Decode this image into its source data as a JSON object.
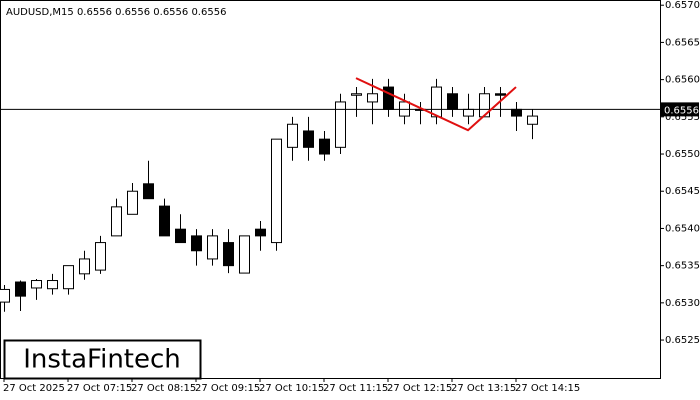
{
  "chart_data": {
    "type": "candlestick",
    "title": "AUDUSD,M15  0.6556 0.6556 0.6556 0.6556",
    "watermark": "InstaFintech",
    "categories": [
      "27 Oct 2025",
      null,
      null,
      null,
      "27 Oct 07:15",
      null,
      null,
      null,
      "27 Oct 08:15",
      null,
      null,
      null,
      "27 Oct 09:15",
      null,
      null,
      null,
      "27 Oct 10:15",
      null,
      null,
      null,
      "27 Oct 11:15",
      null,
      null,
      null,
      "27 Oct 12:15",
      null,
      null,
      null,
      "27 Oct 13:15",
      null,
      null,
      null,
      "27 Oct 14:15",
      null
    ],
    "open": [
      0.65301,
      0.65328,
      0.6532,
      0.65319,
      0.65319,
      0.65339,
      0.65344,
      0.6539,
      0.65419,
      0.6546,
      0.6543,
      0.65399,
      0.6539,
      0.65359,
      0.65381,
      0.6534,
      0.65399,
      0.65381,
      0.65509,
      0.65531,
      0.6552,
      0.65509,
      0.65579,
      0.6557,
      0.6559,
      0.65551,
      0.6556,
      0.6555,
      0.65581,
      0.65551,
      0.6555,
      0.65581,
      0.6556,
      0.6554
    ],
    "high": [
      0.65324,
      0.6533,
      0.65332,
      0.65339,
      0.6535,
      0.6537,
      0.6539,
      0.6544,
      0.65461,
      0.65491,
      0.6544,
      0.65419,
      0.65399,
      0.65399,
      0.65399,
      0.6539,
      0.6541,
      0.6552,
      0.6555,
      0.6555,
      0.65531,
      0.65581,
      0.6559,
      0.65601,
      0.65601,
      0.65581,
      0.6557,
      0.65601,
      0.6559,
      0.65581,
      0.6559,
      0.6559,
      0.6557,
      0.6556
    ],
    "low": [
      0.65288,
      0.65289,
      0.65304,
      0.65311,
      0.65311,
      0.65331,
      0.65339,
      0.6539,
      0.65419,
      0.6544,
      0.6539,
      0.65381,
      0.6535,
      0.6535,
      0.6534,
      0.6534,
      0.6537,
      0.6537,
      0.65491,
      0.65491,
      0.65491,
      0.655,
      0.6555,
      0.6554,
      0.6555,
      0.6554,
      0.6554,
      0.6554,
      0.6555,
      0.6554,
      0.6555,
      0.6555,
      0.65531,
      0.6552
    ],
    "close": [
      0.65318,
      0.65309,
      0.6533,
      0.6533,
      0.6535,
      0.65359,
      0.65381,
      0.65429,
      0.6545,
      0.6544,
      0.6539,
      0.65381,
      0.6537,
      0.6539,
      0.6535,
      0.6539,
      0.6539,
      0.6552,
      0.6554,
      0.65509,
      0.655,
      0.6557,
      0.65581,
      0.65581,
      0.6556,
      0.6557,
      0.65559,
      0.6559,
      0.6556,
      0.6556,
      0.65581,
      0.65579,
      0.65551,
      0.65551
    ],
    "up_color": "#ffffff",
    "down_color": "#000000",
    "current_price": 0.6556,
    "pattern": {
      "color": "#e01010",
      "index": [
        22,
        29,
        32
      ],
      "values": [
        0.65602,
        0.65532,
        0.6559
      ]
    },
    "ylim": [
      0.65199,
      0.65707
    ],
    "yticks": [
      {
        "value": 0.657,
        "label": "0.6570"
      },
      0.6565,
      {
        "value": 0.656,
        "label": "0.6560"
      },
      0.6555,
      {
        "value": 0.655,
        "label": "0.6550"
      },
      0.6545,
      {
        "value": 0.654,
        "label": "0.6540"
      },
      0.6535,
      {
        "value": 0.653,
        "label": "0.6530"
      },
      0.6525
    ]
  }
}
